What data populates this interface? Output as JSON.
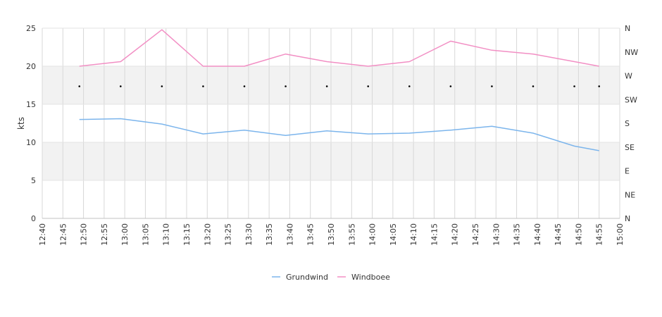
{
  "chart_data": {
    "type": "line",
    "title": "",
    "ylabel": "kts",
    "xlabel": "",
    "ylim": [
      0,
      25
    ],
    "y_ticks": [
      0,
      5,
      10,
      15,
      20,
      25
    ],
    "x_ticks": [
      "12:40",
      "12:45",
      "12:50",
      "12:55",
      "13:00",
      "13:05",
      "13:10",
      "13:15",
      "13:20",
      "13:25",
      "13:30",
      "13:35",
      "13:40",
      "13:45",
      "13:50",
      "13:55",
      "14:00",
      "14:05",
      "14:10",
      "14:15",
      "14:20",
      "14:25",
      "14:30",
      "14:35",
      "14:40",
      "14:45",
      "14:50",
      "14:55",
      "15:00"
    ],
    "x_range": [
      "12:40",
      "15:00"
    ],
    "y2_ticks": [
      "N",
      "NE",
      "E",
      "SE",
      "S",
      "SW",
      "W",
      "NW",
      "N"
    ],
    "grid": true,
    "legend_position": "bottom",
    "series": [
      {
        "name": "Grundwind",
        "color": "#7cb5ec",
        "x": [
          "12:49",
          "12:59",
          "13:09",
          "13:19",
          "13:29",
          "13:39",
          "13:49",
          "13:59",
          "14:09",
          "14:19",
          "14:29",
          "14:39",
          "14:49",
          "14:55"
        ],
        "values": [
          13.0,
          13.1,
          12.4,
          11.1,
          11.6,
          10.9,
          11.5,
          11.1,
          11.2,
          11.6,
          12.1,
          11.2,
          9.5,
          8.9
        ]
      },
      {
        "name": "Windboee",
        "color": "#f28fc4",
        "x": [
          "12:49",
          "12:59",
          "13:09",
          "13:19",
          "13:29",
          "13:39",
          "13:49",
          "13:59",
          "14:09",
          "14:19",
          "14:29",
          "14:39",
          "14:49",
          "14:55"
        ],
        "values": [
          20.0,
          20.6,
          24.8,
          20.0,
          20.0,
          21.6,
          20.6,
          20.0,
          20.6,
          23.3,
          22.1,
          21.6,
          20.6,
          20.0
        ]
      }
    ],
    "direction_markers": {
      "x": [
        "12:49",
        "12:59",
        "13:09",
        "13:19",
        "13:29",
        "13:39",
        "13:49",
        "13:59",
        "14:09",
        "14:19",
        "14:29",
        "14:39",
        "14:49",
        "14:55"
      ],
      "values_deg": [
        250,
        250,
        250,
        250,
        250,
        250,
        250,
        250,
        250,
        250,
        250,
        250,
        250,
        250
      ]
    }
  }
}
